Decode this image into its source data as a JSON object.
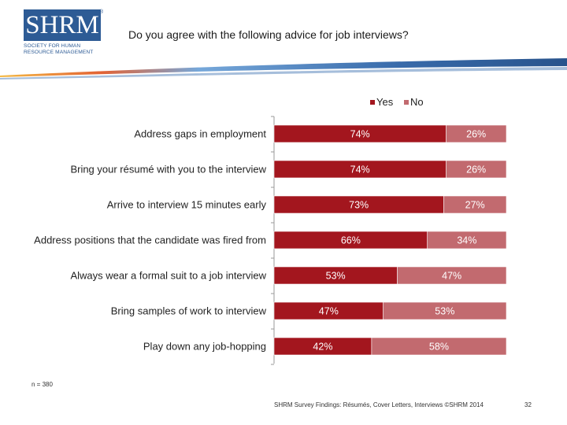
{
  "logo": {
    "mark": "SHRM",
    "registered": "®",
    "line1": "SOCIETY FOR HUMAN",
    "line2": "RESOURCE MANAGEMENT"
  },
  "title": "Do you agree with the following advice for job interviews?",
  "colors": {
    "yes": "#a3161e",
    "no": "#c26a6f",
    "brand": "#2d5b95"
  },
  "chart_data": {
    "type": "bar",
    "orientation": "horizontal",
    "stacked": true,
    "percent_stacked": true,
    "legend_position": "top",
    "categories": [
      "Address gaps in employment",
      "Bring your résumé with you to the interview",
      "Arrive to interview 15 minutes early",
      "Address positions that the candidate was fired from",
      "Always wear a formal suit to a job interview",
      "Bring samples of work to interview",
      "Play down any job-hopping"
    ],
    "series": [
      {
        "name": "Yes",
        "values": [
          74,
          74,
          73,
          66,
          53,
          47,
          42
        ],
        "labels": [
          "74%",
          "74%",
          "73%",
          "66%",
          "53%",
          "47%",
          "42%"
        ]
      },
      {
        "name": "No",
        "values": [
          26,
          26,
          27,
          34,
          47,
          53,
          58
        ],
        "labels": [
          "26%",
          "26%",
          "27%",
          "34%",
          "47%",
          "53%",
          "58%"
        ]
      }
    ],
    "xlim": [
      0,
      100
    ],
    "grid": false
  },
  "note": "n = 380",
  "footer": "SHRM Survey Findings: Résumés, Cover Letters, Interviews ©SHRM 2014",
  "page_number": "32"
}
